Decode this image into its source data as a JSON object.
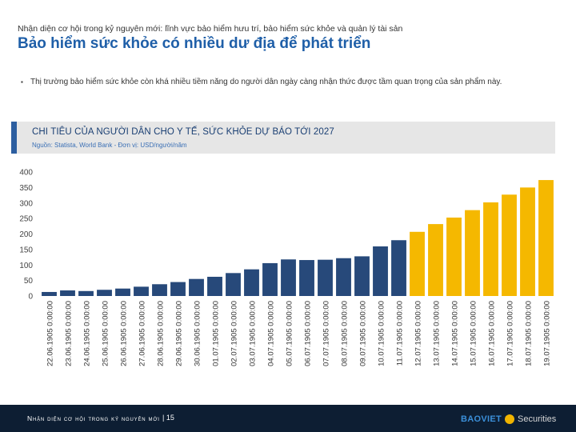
{
  "header": {
    "supertitle": "Nhận diện cơ hội trong kỷ nguyên mới: lĩnh vực bảo hiểm hưu trí, bảo hiểm sức khỏe và quản lý tài sản",
    "title": "Bảo hiểm sức khỏe có nhiều dư địa để phát triển"
  },
  "bullet": {
    "mark": "▪",
    "text": "Thị trường bảo hiểm sức khỏe còn khá nhiều tiềm năng do người dân ngày càng nhận thức được tầm quan trọng của sản phẩm này."
  },
  "chart_header": {
    "title": "CHI TIÊU CỦA NGƯỜI DÂN CHO Y TẾ, SỨC KHỎE DỰ BÁO TỚI 2027",
    "source": "Nguồn: Statista, World Bank - Đơn vị: USD/người/năm"
  },
  "chart_data": {
    "type": "bar",
    "title": "CHI TIÊU CỦA NGƯỜI DÂN CHO Y TẾ, SỨC KHỎE DỰ BÁO TỚI 2027",
    "xlabel": "",
    "ylabel": "",
    "ylim": [
      0,
      400
    ],
    "yticks": [
      0,
      50,
      100,
      150,
      200,
      250,
      300,
      350,
      400
    ],
    "grid": false,
    "categories": [
      "22.06.1905 0:00:00",
      "23.06.1905 0:00:00",
      "24.06.1905 0:00:00",
      "25.06.1905 0:00:00",
      "26.06.1905 0:00:00",
      "27.06.1905 0:00:00",
      "28.06.1905 0:00:00",
      "29.06.1905 0:00:00",
      "30.06.1905 0:00:00",
      "01.07.1905 0:00:00",
      "02.07.1905 0:00:00",
      "03.07.1905 0:00:00",
      "04.07.1905 0:00:00",
      "05.07.1905 0:00:00",
      "06.07.1905 0:00:00",
      "07.07.1905 0:00:00",
      "08.07.1905 0:00:00",
      "09.07.1905 0:00:00",
      "10.07.1905 0:00:00",
      "11.07.1905 0:00:00",
      "12.07.1905 0:00:00",
      "13.07.1905 0:00:00",
      "14.07.1905 0:00:00",
      "15.07.1905 0:00:00",
      "16.07.1905 0:00:00",
      "17.07.1905 0:00:00",
      "18.07.1905 0:00:00",
      "19.07.1905 0:00:00"
    ],
    "values": [
      13,
      18,
      16,
      20,
      24,
      30,
      38,
      45,
      55,
      62,
      74,
      86,
      106,
      118,
      116,
      117,
      122,
      128,
      160,
      180,
      207,
      232,
      253,
      277,
      302,
      327,
      350,
      374
    ],
    "colors": {
      "historical": "#27497a",
      "forecast": "#f5b800"
    },
    "forecast_start_index": 20
  },
  "footer": {
    "text": "Nhận diện cơ hội trong kỷ nguyên mới",
    "page": "| 15",
    "logo_main": "BAOVIET",
    "logo_sub": "Securities"
  }
}
